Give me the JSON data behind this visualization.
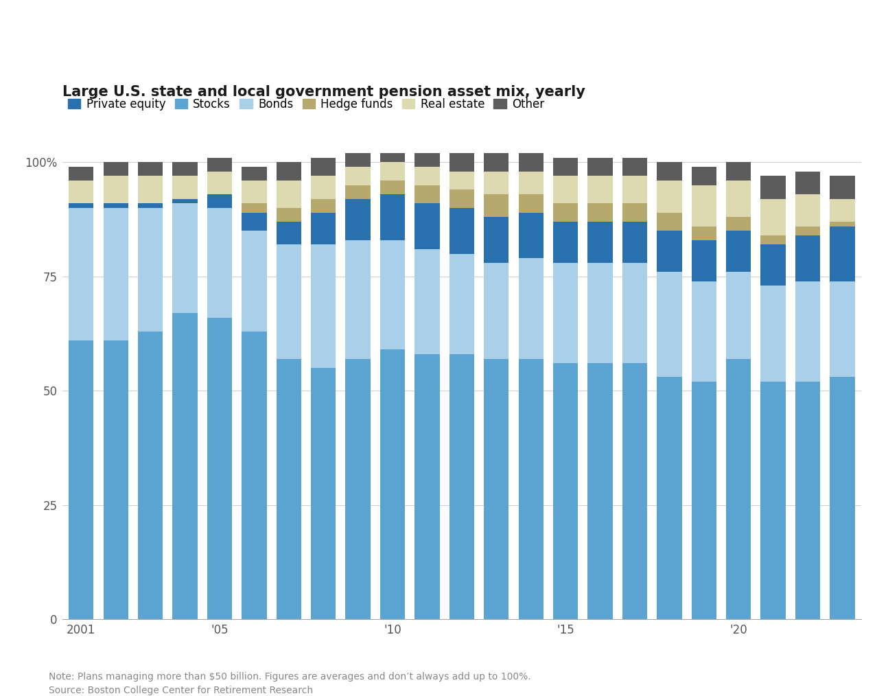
{
  "title": "Large U.S. state and local government pension asset mix, yearly",
  "years": [
    2001,
    2002,
    2003,
    2004,
    2005,
    2006,
    2007,
    2008,
    2009,
    2010,
    2011,
    2012,
    2013,
    2014,
    2015,
    2016,
    2017,
    2018,
    2019,
    2020,
    2021,
    2022,
    2023
  ],
  "x_tick_labels": [
    "2001",
    "",
    "",
    "",
    "'05",
    "",
    "",
    "",
    "",
    "'10",
    "",
    "",
    "",
    "",
    "'15",
    "",
    "",
    "",
    "",
    "'20",
    "",
    "",
    ""
  ],
  "categories": [
    "Stocks",
    "Bonds",
    "Private equity",
    "Hedge funds",
    "Real estate",
    "Other"
  ],
  "legend_order": [
    "Private equity",
    "Stocks",
    "Bonds",
    "Hedge funds",
    "Real estate",
    "Other"
  ],
  "colors": {
    "Private equity": "#2971ae",
    "Stocks": "#5ba3d0",
    "Bonds": "#aacfe8",
    "Hedge funds": "#b5a96e",
    "Real estate": "#ddd9b0",
    "Other": "#5c5c5c"
  },
  "data": {
    "Stocks": [
      61,
      61,
      63,
      67,
      66,
      63,
      57,
      55,
      57,
      59,
      58,
      58,
      57,
      57,
      56,
      56,
      56,
      53,
      52,
      57,
      52,
      52,
      53
    ],
    "Bonds": [
      29,
      29,
      27,
      24,
      24,
      22,
      25,
      27,
      26,
      24,
      23,
      22,
      21,
      22,
      22,
      22,
      22,
      23,
      22,
      19,
      21,
      22,
      21
    ],
    "Private equity": [
      1,
      1,
      1,
      1,
      3,
      4,
      5,
      7,
      9,
      10,
      10,
      10,
      10,
      10,
      9,
      9,
      9,
      9,
      9,
      9,
      9,
      10,
      12
    ],
    "Hedge funds": [
      0,
      0,
      0,
      0,
      0,
      2,
      3,
      3,
      3,
      3,
      4,
      4,
      5,
      4,
      4,
      4,
      4,
      4,
      3,
      3,
      2,
      2,
      1
    ],
    "Real estate": [
      5,
      6,
      6,
      5,
      5,
      5,
      6,
      5,
      4,
      4,
      4,
      4,
      5,
      5,
      6,
      6,
      6,
      7,
      9,
      8,
      8,
      7,
      5
    ],
    "Other": [
      3,
      3,
      3,
      3,
      3,
      3,
      4,
      4,
      4,
      4,
      4,
      4,
      4,
      4,
      4,
      4,
      4,
      4,
      4,
      4,
      5,
      5,
      5
    ]
  },
  "note": "Note: Plans managing more than $50 billion. Figures are averages and don’t always add up to 100%.",
  "source": "Source: Boston College Center for Retirement Research",
  "background_color": "#ffffff",
  "ylim": [
    0,
    102
  ],
  "yticks": [
    0,
    25,
    50,
    75,
    100
  ],
  "ytick_labels": [
    "0",
    "25",
    "50",
    "75",
    "100%"
  ],
  "bar_width": 0.72,
  "title_fontsize": 15,
  "legend_fontsize": 12,
  "tick_fontsize": 12,
  "note_fontsize": 10,
  "grid_color": "#d0d0d0",
  "tick_color": "#555555"
}
